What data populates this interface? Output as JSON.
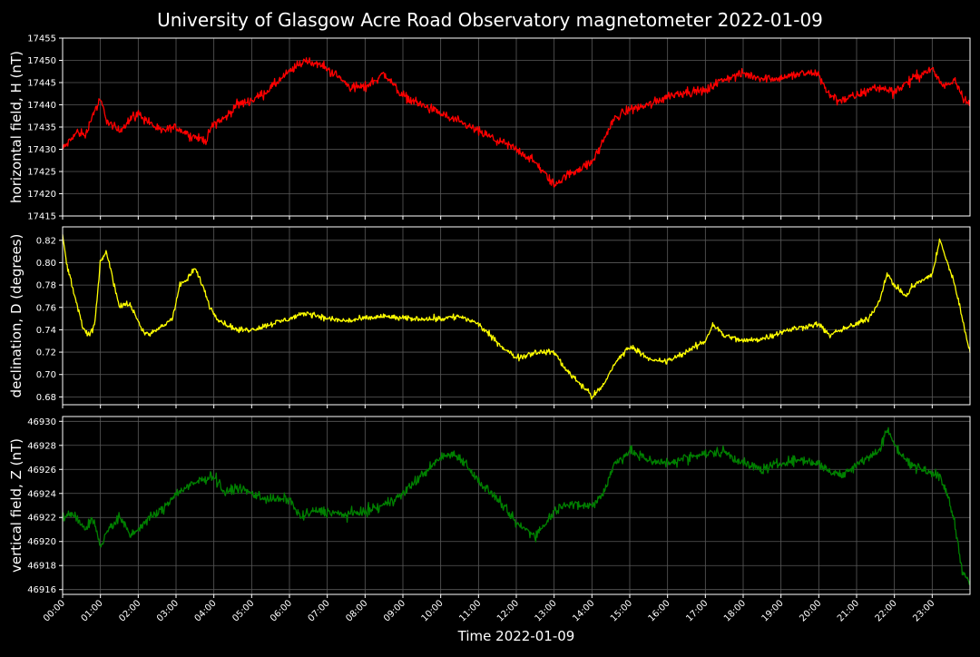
{
  "title": "University of Glasgow Acre Road Observatory magnetometer 2022-01-09",
  "chart_data": {
    "type": "line",
    "xlabel": "Time 2022-01-09",
    "x_range_hours": [
      0,
      24
    ],
    "x_ticks": [
      "00:00",
      "01:00",
      "02:00",
      "03:00",
      "04:00",
      "05:00",
      "06:00",
      "07:00",
      "08:00",
      "09:00",
      "10:00",
      "11:00",
      "12:00",
      "13:00",
      "14:00",
      "15:00",
      "16:00",
      "17:00",
      "18:00",
      "19:00",
      "20:00",
      "21:00",
      "22:00",
      "23:00"
    ],
    "background": "#000000",
    "grid": true,
    "panels": [
      {
        "id": "H",
        "ylabel": "horizontal field, H (nT)",
        "color": "#ff0000",
        "ylim": [
          17415,
          17455
        ],
        "yticks": [
          "17415",
          "17420",
          "17425",
          "17430",
          "17435",
          "17440",
          "17445",
          "17450",
          "17455"
        ],
        "noise": 2.0,
        "series": [
          {
            "x": [
              0,
              0.2,
              0.4,
              0.6,
              0.8,
              1.0,
              1.2,
              1.5,
              1.8,
              2.0,
              2.3,
              2.6,
              3.0,
              3.4,
              3.8,
              4.0,
              4.3,
              4.6,
              5.0,
              5.4,
              5.8,
              6.1,
              6.4,
              6.8,
              7.2,
              7.6,
              8.0,
              8.5,
              9.0,
              9.5,
              10.0,
              10.5,
              11.0,
              11.5,
              12.0,
              12.5,
              12.8,
              13.0,
              13.5,
              14.0,
              14.3,
              14.6,
              15.0,
              15.5,
              16.0,
              16.5,
              17.0,
              17.3,
              17.6,
              18.0,
              18.5,
              19.0,
              19.5,
              20.0,
              20.2,
              20.5,
              21.0,
              21.5,
              22.0,
              22.5,
              23.0,
              23.3,
              23.6,
              23.8,
              24.0
            ],
            "y": [
              17430,
              17432,
              17434,
              17433,
              17438,
              17441,
              17436,
              17434,
              17437,
              17438,
              17436,
              17434,
              17435,
              17433,
              17432,
              17436,
              17437,
              17440,
              17441,
              17443,
              17446,
              17448,
              17450,
              17449,
              17447,
              17444,
              17444,
              17447,
              17442,
              17440,
              17438,
              17436,
              17434,
              17432,
              17430,
              17427,
              17424,
              17422,
              17425,
              17427,
              17432,
              17437,
              17439,
              17440,
              17442,
              17443,
              17443,
              17445,
              17446,
              17447,
              17446,
              17446,
              17447,
              17447,
              17443,
              17441,
              17442,
              17444,
              17443,
              17446,
              17448,
              17444,
              17446,
              17442,
              17440
            ]
          }
        ]
      },
      {
        "id": "D",
        "ylabel": "declination, D (degrees)",
        "color": "#ffff00",
        "ylim": [
          0.673,
          0.832
        ],
        "yticks": [
          "0.68",
          "0.70",
          "0.72",
          "0.74",
          "0.76",
          "0.78",
          "0.80",
          "0.82"
        ],
        "noise": 0.005,
        "series": [
          {
            "x": [
              0,
              0.1,
              0.25,
              0.4,
              0.55,
              0.7,
              0.85,
              1.0,
              1.15,
              1.3,
              1.5,
              1.7,
              1.9,
              2.1,
              2.3,
              2.5,
              2.7,
              2.9,
              3.1,
              3.3,
              3.5,
              3.7,
              3.9,
              4.1,
              4.3,
              4.6,
              5.0,
              5.5,
              6.0,
              6.5,
              7.0,
              7.5,
              8.0,
              8.5,
              9.0,
              9.5,
              10.0,
              10.5,
              11.0,
              11.3,
              11.6,
              12.0,
              12.5,
              13.0,
              13.3,
              13.6,
              13.9,
              14.0,
              14.3,
              14.6,
              15.0,
              15.3,
              15.6,
              16.0,
              16.5,
              17.0,
              17.2,
              17.5,
              18.0,
              18.5,
              19.0,
              19.5,
              20.0,
              20.3,
              20.6,
              21.0,
              21.3,
              21.6,
              21.8,
              22.0,
              22.3,
              22.5,
              22.8,
              23.0,
              23.2,
              23.4,
              23.6,
              23.8,
              24.0
            ],
            "y": [
              0.825,
              0.8,
              0.78,
              0.76,
              0.74,
              0.735,
              0.745,
              0.8,
              0.81,
              0.79,
              0.76,
              0.765,
              0.755,
              0.74,
              0.735,
              0.74,
              0.745,
              0.75,
              0.78,
              0.785,
              0.795,
              0.78,
              0.76,
              0.75,
              0.745,
              0.74,
              0.74,
              0.745,
              0.75,
              0.755,
              0.75,
              0.748,
              0.75,
              0.752,
              0.75,
              0.75,
              0.75,
              0.752,
              0.745,
              0.735,
              0.725,
              0.715,
              0.72,
              0.72,
              0.705,
              0.695,
              0.685,
              0.68,
              0.69,
              0.71,
              0.725,
              0.72,
              0.712,
              0.712,
              0.72,
              0.73,
              0.745,
              0.735,
              0.73,
              0.732,
              0.738,
              0.742,
              0.745,
              0.735,
              0.74,
              0.745,
              0.75,
              0.765,
              0.79,
              0.78,
              0.77,
              0.78,
              0.785,
              0.79,
              0.82,
              0.8,
              0.78,
              0.75,
              0.72
            ]
          }
        ]
      },
      {
        "id": "Z",
        "ylabel": "vertical field, Z (nT)",
        "color": "#008000",
        "ylim": [
          46915.6,
          46930.4
        ],
        "yticks": [
          "46916",
          "46918",
          "46920",
          "46922",
          "46924",
          "46926",
          "46928",
          "46930"
        ],
        "noise": 0.8,
        "series": [
          {
            "x": [
              0,
              0.3,
              0.6,
              0.8,
              1.0,
              1.2,
              1.5,
              1.8,
              2.0,
              2.3,
              2.6,
              3.0,
              3.3,
              3.6,
              4.0,
              4.3,
              4.6,
              5.0,
              5.5,
              6.0,
              6.3,
              6.6,
              7.0,
              7.5,
              8.0,
              8.5,
              9.0,
              9.5,
              10.0,
              10.3,
              10.6,
              11.0,
              11.5,
              12.0,
              12.5,
              13.0,
              13.3,
              13.6,
              14.0,
              14.3,
              14.6,
              15.0,
              15.5,
              16.0,
              16.5,
              17.0,
              17.5,
              18.0,
              18.5,
              19.0,
              19.5,
              20.0,
              20.3,
              20.6,
              21.0,
              21.3,
              21.6,
              21.8,
              22.0,
              22.3,
              22.6,
              23.0,
              23.2,
              23.4,
              23.6,
              23.8,
              24.0
            ],
            "y": [
              46922,
              46922.3,
              46921,
              46922,
              46919.5,
              46921,
              46922,
              46920.5,
              46921,
              46922,
              46922.5,
              46924,
              46924.5,
              46925,
              46925.5,
              46924,
              46924.5,
              46924,
              46923.5,
              46923.5,
              46922,
              46922.5,
              46922.5,
              46922.2,
              46922.5,
              46923,
              46924,
              46925.5,
              46927,
              46927.3,
              46926.8,
              46925,
              46923.5,
              46921.5,
              46920.5,
              46922.5,
              46923.2,
              46923,
              46923,
              46924,
              46926.5,
              46927.5,
              46926.8,
              46926.5,
              46927,
              46927.3,
              46927.5,
              46926.5,
              46926,
              46926.5,
              46926.8,
              46926.5,
              46925.8,
              46925.5,
              46926.5,
              46927,
              46927.5,
              46929.5,
              46928,
              46926.8,
              46926.2,
              46925.8,
              46925.3,
              46924,
              46921.5,
              46917.5,
              46916.5
            ]
          }
        ]
      }
    ]
  }
}
